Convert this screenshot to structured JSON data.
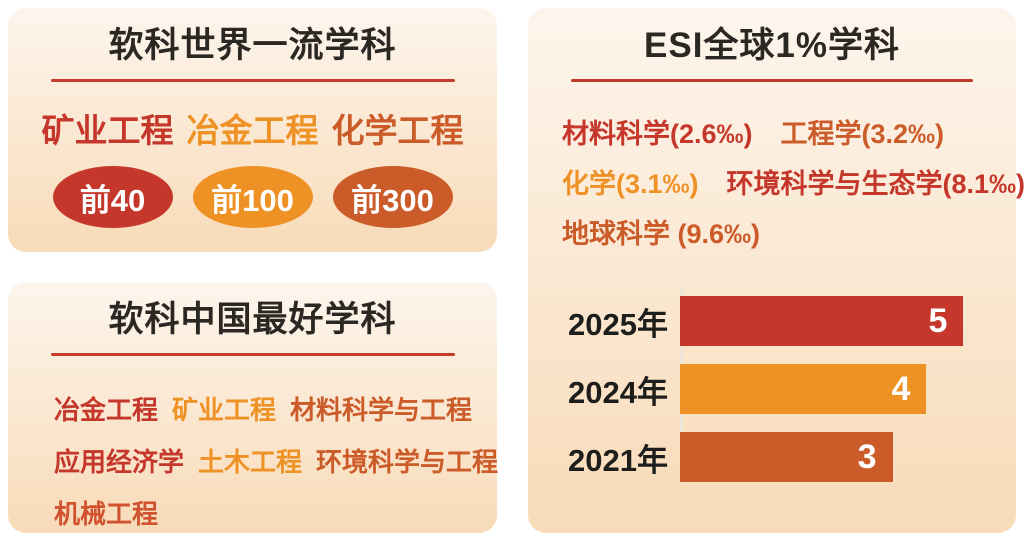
{
  "colors": {
    "red": "#c5372a",
    "orange": "#ee9226",
    "burnt": "#cb5b28",
    "red_orange": "#d0522f",
    "title": "#2b2723",
    "divider": "#c33b2a",
    "panel_top": "#fdf5ed",
    "panel_bottom": "#f8dbb8",
    "page_bg": "#ffffff",
    "axis": "#ece5da",
    "bar_label": "#1d1d1b",
    "bar_value": "#ffffff"
  },
  "world_class": {
    "title": "软科世界一流学科",
    "subjects": [
      {
        "name": "矿业工程",
        "color": "red",
        "badge": "前40"
      },
      {
        "name": "冶金工程",
        "color": "orange",
        "badge": "前100"
      },
      {
        "name": "化学工程",
        "color": "burnt",
        "badge": "前300"
      }
    ]
  },
  "china_best": {
    "title": "软科中国最好学科",
    "rows": [
      [
        {
          "name": "冶金工程",
          "color": "red"
        },
        {
          "name": "矿业工程",
          "color": "orange"
        },
        {
          "name": "材料科学与工程",
          "color": "burnt"
        }
      ],
      [
        {
          "name": "应用经济学",
          "color": "red"
        },
        {
          "name": "土木工程",
          "color": "orange"
        },
        {
          "name": "环境科学与工程",
          "color": "burnt"
        }
      ],
      [
        {
          "name": "机械工程",
          "color": "red_orange"
        }
      ]
    ]
  },
  "esi": {
    "title": "ESI全球1%学科",
    "rows": [
      [
        {
          "name": "材料科学(2.6‰)",
          "color": "red"
        },
        {
          "name": "工程学(3.2‰)",
          "color": "burnt"
        }
      ],
      [
        {
          "name": "化学(3.1‰)",
          "color": "orange"
        },
        {
          "name": "环境科学与生态学(8.1‰)",
          "color": "red"
        }
      ],
      [
        {
          "name": "地球科学 (9.6‰)",
          "color": "burnt"
        }
      ]
    ]
  },
  "chart_data": {
    "type": "bar",
    "orientation": "horizontal",
    "title": "",
    "xlabel": "",
    "ylabel": "",
    "categories": [
      "2025年",
      "2024年",
      "2021年"
    ],
    "values": [
      5,
      4,
      3
    ],
    "bar_colors": [
      "red",
      "orange",
      "burnt"
    ],
    "bar_width_pct": [
      92,
      80,
      69
    ],
    "xlim": [
      0,
      5.5
    ],
    "grid": false,
    "legend": false,
    "value_labels": "inside-right"
  }
}
